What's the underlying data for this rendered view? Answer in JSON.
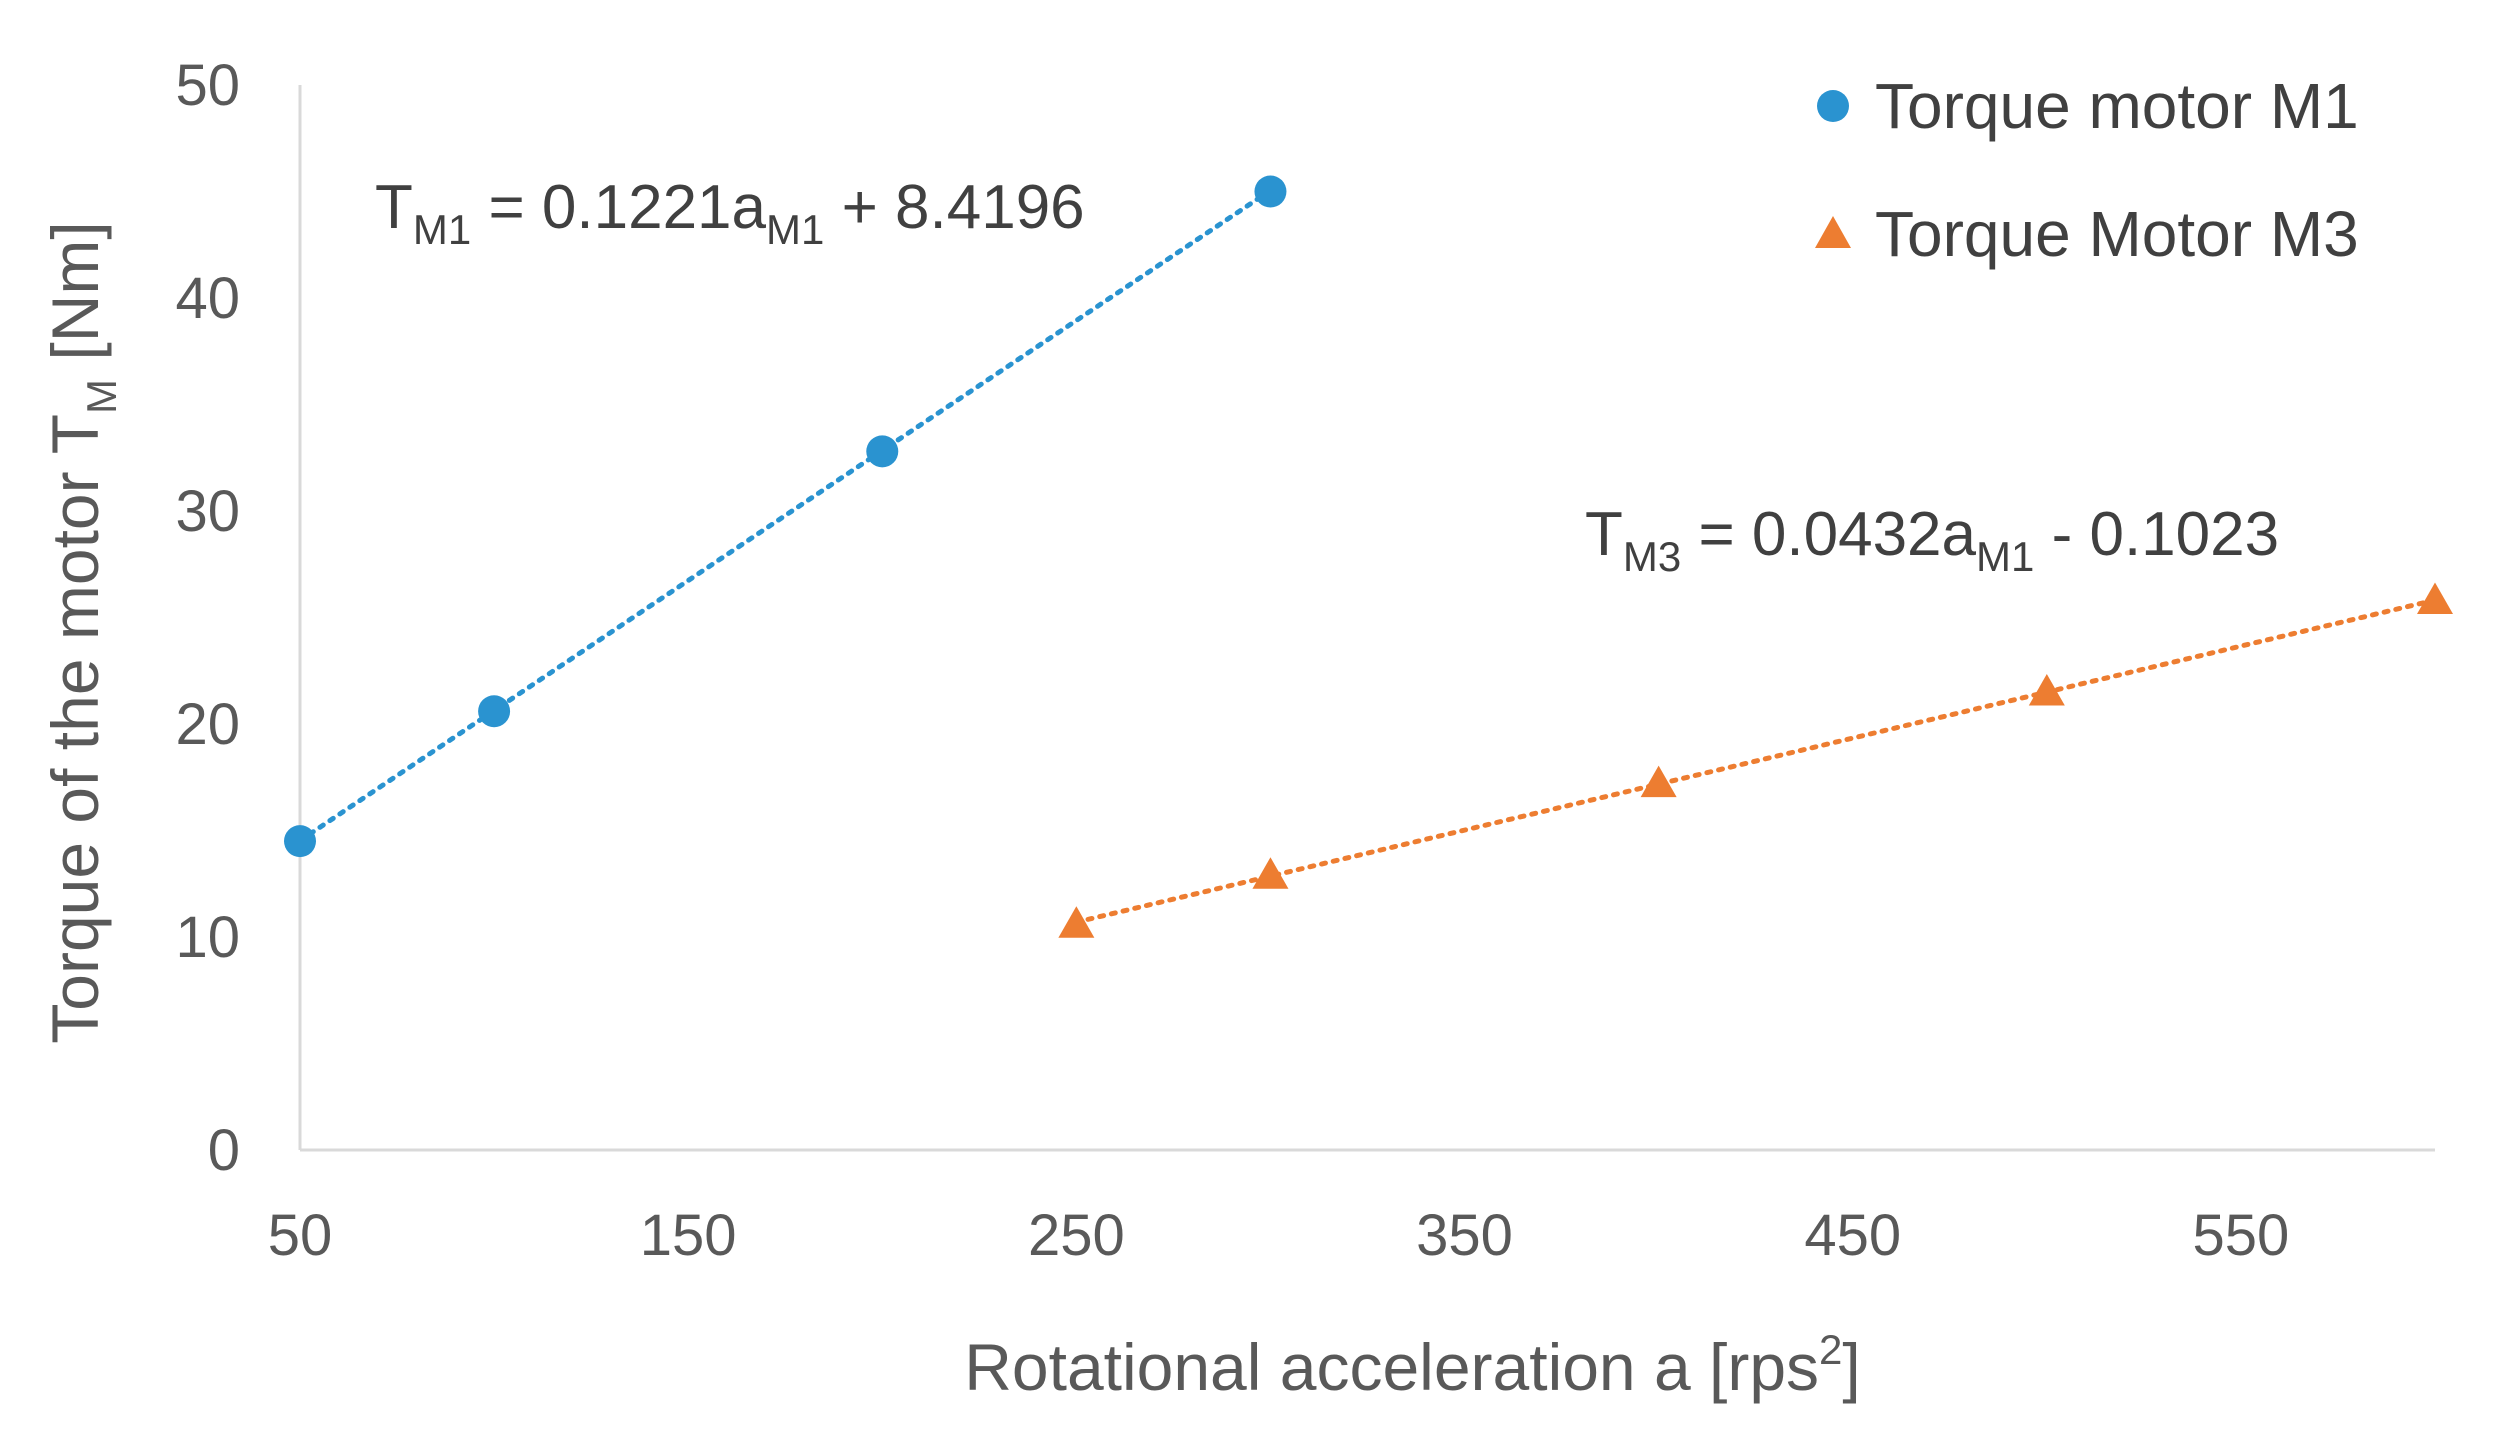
{
  "chart_data": {
    "type": "scatter",
    "title": "",
    "xlabel_main": "Rotational acceleration a [rps",
    "xlabel_sup": "2",
    "xlabel_end": "]",
    "ylabel_main": "Torque of the motor T",
    "ylabel_sub": "M",
    "ylabel_end": " [Nm]",
    "xlim": [
      50,
      600
    ],
    "ylim": [
      0,
      50
    ],
    "x_ticks": [
      50,
      150,
      250,
      350,
      450,
      550
    ],
    "y_ticks": [
      0,
      10,
      20,
      30,
      40,
      50
    ],
    "legend_position": "top-right",
    "series": [
      {
        "name": "Torque motor M1",
        "marker": "circle",
        "color": "#2a93d0",
        "x": [
          50,
          100,
          200,
          300
        ],
        "y": [
          14.5,
          20.6,
          32.8,
          45.0
        ],
        "trendline": {
          "slope": 0.1221,
          "intercept": 8.4196,
          "x_range": [
            50,
            300
          ],
          "label_parts": [
            "T",
            "M1",
            " = 0.1221a",
            "M1",
            " + 8.4196"
          ]
        }
      },
      {
        "name": "Torque Motor M3",
        "marker": "triangle",
        "color": "#ed7d31",
        "x": [
          250,
          300,
          400,
          500,
          600
        ],
        "y": [
          10.6,
          12.9,
          17.2,
          21.5,
          25.8
        ],
        "trendline": {
          "slope": 0.0432,
          "intercept": -0.1023,
          "x_range": [
            250,
            600
          ],
          "label_parts": [
            "T",
            "M3",
            " = 0.0432a",
            "M1",
            " - 0.1023"
          ]
        }
      }
    ]
  }
}
